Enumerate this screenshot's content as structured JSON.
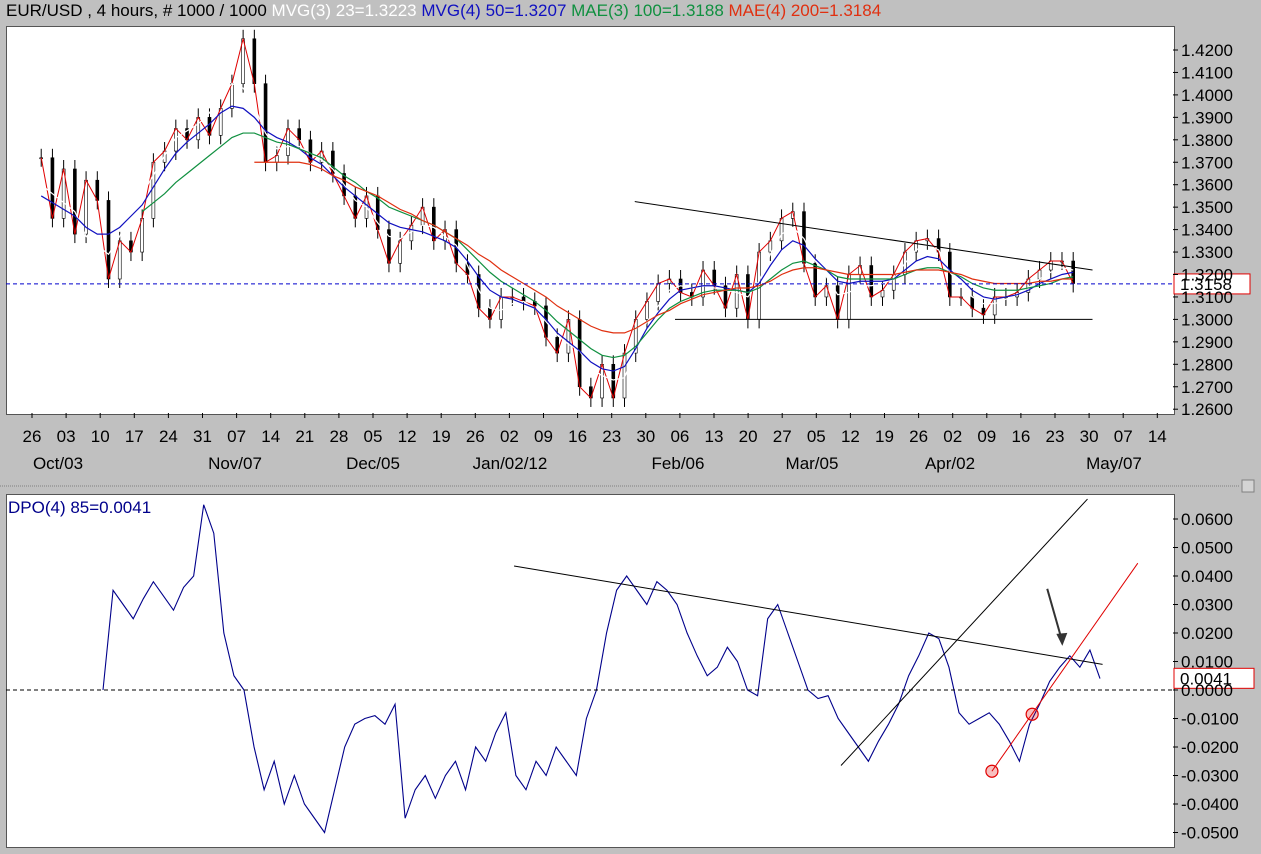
{
  "header": {
    "symbol": "EUR/USD , 4 hours, # 1000 / 1000",
    "mvg3": "MVG(3) 23=1.3223",
    "mvg4": "MVG(4) 50=1.3207",
    "mae3": "MAE(3) 100=1.3188",
    "mae4": "MAE(4) 200=1.3184"
  },
  "colors": {
    "price": "#000000",
    "mvg3": "#ffffff",
    "mvg4": "#1010c0",
    "mae3": "#109040",
    "mae4": "#e03010",
    "dpo": "#00008b",
    "marker": "#e00000"
  },
  "chart_data": [
    {
      "type": "candlestick",
      "title": "EUR/USD , 4 hours, # 1000 / 1000",
      "ylim": [
        1.255,
        1.43
      ],
      "y_ticks": [
        "1.4200",
        "1.4100",
        "1.4000",
        "1.3900",
        "1.3800",
        "1.3700",
        "1.3600",
        "1.3500",
        "1.3400",
        "1.3300",
        "1.3200",
        "1.3100",
        "1.3000",
        "1.2900",
        "1.2800",
        "1.2700",
        "1.2600"
      ],
      "x_day_labels": [
        "26",
        "03",
        "10",
        "17",
        "24",
        "31",
        "07",
        "14",
        "21",
        "28",
        "05",
        "12",
        "19",
        "26",
        "02",
        "09",
        "16",
        "23",
        "30",
        "06",
        "13",
        "20",
        "27",
        "05",
        "12",
        "19",
        "26",
        "02",
        "09",
        "16",
        "23",
        "30",
        "07",
        "14"
      ],
      "x_month_labels": [
        "Oct/03",
        "Nov/07",
        "Dec/05",
        "Jan/02/12",
        "Feb/06",
        "Mar/05",
        "Apr/02",
        "May/07"
      ],
      "last_price": "1.3158",
      "price_path": [
        1.372,
        1.345,
        1.367,
        1.338,
        1.362,
        1.353,
        1.318,
        1.335,
        1.33,
        1.345,
        1.37,
        1.375,
        1.385,
        1.38,
        1.39,
        1.382,
        1.394,
        1.405,
        1.425,
        1.405,
        1.37,
        1.373,
        1.385,
        1.38,
        1.37,
        1.375,
        1.365,
        1.355,
        1.345,
        1.355,
        1.34,
        1.325,
        1.335,
        1.342,
        1.35,
        1.335,
        1.34,
        1.325,
        1.32,
        1.305,
        1.3,
        1.31,
        1.31,
        1.308,
        1.306,
        1.292,
        1.285,
        1.3,
        1.27,
        1.265,
        1.28,
        1.265,
        1.285,
        1.3,
        1.308,
        1.316,
        1.318,
        1.312,
        1.31,
        1.322,
        1.315,
        1.305,
        1.32,
        1.3,
        1.33,
        1.335,
        1.345,
        1.348,
        1.325,
        1.31,
        1.315,
        1.3,
        1.32,
        1.324,
        1.31,
        1.313,
        1.32,
        1.33,
        1.335,
        1.336,
        1.33,
        1.31,
        1.31,
        1.305,
        1.302,
        1.31,
        1.31,
        1.312,
        1.318,
        1.322,
        1.326,
        1.326,
        1.316
      ],
      "series": [
        {
          "name": "MVG(3) 23",
          "values": [
            1.36,
            1.356,
            1.352,
            1.348,
            1.337,
            1.333,
            1.329,
            1.337,
            1.347,
            1.356,
            1.364,
            1.373,
            1.381,
            1.384,
            1.387,
            1.392,
            1.4,
            1.405,
            1.403,
            1.395,
            1.383,
            1.376,
            1.377,
            1.377,
            1.374,
            1.371,
            1.367,
            1.36,
            1.353,
            1.35,
            1.343,
            1.337,
            1.336,
            1.339,
            1.342,
            1.341,
            1.337,
            1.333,
            1.324,
            1.313,
            1.305,
            1.304,
            1.307,
            1.308,
            1.305,
            1.299,
            1.293,
            1.289,
            1.286,
            1.278,
            1.275,
            1.273,
            1.274,
            1.287,
            1.299,
            1.306,
            1.313,
            1.315,
            1.314,
            1.315,
            1.314,
            1.313,
            1.312,
            1.31,
            1.317,
            1.329,
            1.338,
            1.341,
            1.336,
            1.326,
            1.319,
            1.311,
            1.312,
            1.315,
            1.315,
            1.316,
            1.318,
            1.325,
            1.331,
            1.333,
            1.331,
            1.321,
            1.315,
            1.31,
            1.307,
            1.307,
            1.309,
            1.311,
            1.314,
            1.318,
            1.321,
            1.323,
            1.322
          ]
        },
        {
          "name": "MVG(4) 50",
          "values": [
            1.355,
            1.352,
            1.349,
            1.346,
            1.341,
            1.338,
            1.338,
            1.341,
            1.346,
            1.351,
            1.359,
            1.367,
            1.374,
            1.379,
            1.383,
            1.387,
            1.392,
            1.395,
            1.394,
            1.39,
            1.384,
            1.381,
            1.379,
            1.376,
            1.372,
            1.369,
            1.364,
            1.359,
            1.355,
            1.351,
            1.347,
            1.343,
            1.341,
            1.34,
            1.339,
            1.337,
            1.335,
            1.332,
            1.326,
            1.319,
            1.313,
            1.31,
            1.309,
            1.307,
            1.305,
            1.3,
            1.294,
            1.29,
            1.286,
            1.281,
            1.278,
            1.277,
            1.279,
            1.287,
            1.296,
            1.303,
            1.309,
            1.313,
            1.314,
            1.315,
            1.315,
            1.314,
            1.313,
            1.312,
            1.316,
            1.324,
            1.331,
            1.335,
            1.333,
            1.327,
            1.322,
            1.317,
            1.316,
            1.317,
            1.317,
            1.317,
            1.318,
            1.322,
            1.326,
            1.328,
            1.327,
            1.322,
            1.318,
            1.313,
            1.31,
            1.309,
            1.31,
            1.311,
            1.313,
            1.316,
            1.318,
            1.32,
            1.321
          ]
        },
        {
          "name": "MAE(3) 100",
          "values": [
            null,
            null,
            null,
            null,
            null,
            null,
            null,
            null,
            null,
            1.348,
            1.352,
            1.356,
            1.361,
            1.365,
            1.369,
            1.373,
            1.377,
            1.381,
            1.383,
            1.383,
            1.381,
            1.379,
            1.378,
            1.376,
            1.374,
            1.372,
            1.368,
            1.364,
            1.361,
            1.357,
            1.354,
            1.35,
            1.348,
            1.346,
            1.344,
            1.342,
            1.339,
            1.336,
            1.331,
            1.326,
            1.321,
            1.317,
            1.314,
            1.311,
            1.308,
            1.304,
            1.299,
            1.295,
            1.291,
            1.287,
            1.284,
            1.283,
            1.284,
            1.288,
            1.294,
            1.3,
            1.305,
            1.308,
            1.31,
            1.312,
            1.313,
            1.313,
            1.313,
            1.312,
            1.314,
            1.318,
            1.322,
            1.325,
            1.326,
            1.324,
            1.322,
            1.319,
            1.318,
            1.318,
            1.318,
            1.318,
            1.318,
            1.32,
            1.322,
            1.323,
            1.323,
            1.321,
            1.319,
            1.316,
            1.314,
            1.313,
            1.313,
            1.313,
            1.314,
            1.315,
            1.316,
            1.318,
            1.319
          ]
        },
        {
          "name": "MAE(4) 200",
          "values": [
            null,
            null,
            null,
            null,
            null,
            null,
            null,
            null,
            null,
            null,
            null,
            null,
            null,
            null,
            null,
            null,
            null,
            null,
            null,
            1.37,
            1.37,
            1.37,
            1.37,
            1.37,
            1.369,
            1.367,
            1.364,
            1.362,
            1.359,
            1.357,
            1.355,
            1.352,
            1.349,
            1.347,
            1.344,
            1.342,
            1.339,
            1.336,
            1.333,
            1.329,
            1.326,
            1.322,
            1.319,
            1.316,
            1.313,
            1.31,
            1.306,
            1.303,
            1.3,
            1.297,
            1.295,
            1.294,
            1.294,
            1.296,
            1.299,
            1.302,
            1.304,
            1.307,
            1.309,
            1.311,
            1.312,
            1.313,
            1.314,
            1.314,
            1.315,
            1.317,
            1.32,
            1.322,
            1.323,
            1.323,
            1.322,
            1.321,
            1.32,
            1.32,
            1.32,
            1.32,
            1.32,
            1.321,
            1.322,
            1.322,
            1.322,
            1.321,
            1.32,
            1.318,
            1.317,
            1.316,
            1.316,
            1.316,
            1.316,
            1.317,
            1.317,
            1.318,
            1.318
          ]
        }
      ],
      "annotations": [
        {
          "type": "trendline",
          "from": {
            "day": 125,
            "y": 1.3525
          },
          "to": {
            "day": 216,
            "y": 1.322
          }
        },
        {
          "type": "hline",
          "y": 1.3,
          "from_day": 133,
          "to_day": 216
        },
        {
          "type": "hline_dashed",
          "y": 1.3158
        }
      ]
    },
    {
      "type": "line",
      "title": "DPO(4) 85=0.0041",
      "ylim": [
        -0.053,
        0.068
      ],
      "y_ticks": [
        "0.0600",
        "0.0500",
        "0.0400",
        "0.0300",
        "0.0200",
        "0.0100",
        "0.0000",
        "-0.0100",
        "-0.0200",
        "-0.0300",
        "-0.0400",
        "-0.0500"
      ],
      "last_value": "0.0041",
      "series": [
        {
          "name": "DPO(4) 85",
          "values": [
            0.0,
            0.035,
            0.03,
            0.025,
            0.032,
            0.038,
            0.033,
            0.028,
            0.036,
            0.04,
            0.065,
            0.055,
            0.02,
            0.005,
            0.0,
            -0.02,
            -0.035,
            -0.025,
            -0.04,
            -0.03,
            -0.04,
            -0.045,
            -0.05,
            -0.035,
            -0.02,
            -0.012,
            -0.01,
            -0.009,
            -0.012,
            -0.005,
            -0.045,
            -0.035,
            -0.03,
            -0.038,
            -0.03,
            -0.025,
            -0.035,
            -0.02,
            -0.025,
            -0.015,
            -0.008,
            -0.03,
            -0.035,
            -0.025,
            -0.03,
            -0.02,
            -0.025,
            -0.03,
            -0.01,
            0.0,
            0.02,
            0.035,
            0.04,
            0.035,
            0.03,
            0.038,
            0.035,
            0.03,
            0.02,
            0.012,
            0.005,
            0.008,
            0.015,
            0.01,
            0.0,
            -0.002,
            0.025,
            0.03,
            0.02,
            0.01,
            0.0,
            -0.003,
            -0.002,
            -0.01,
            -0.015,
            -0.02,
            -0.025,
            -0.018,
            -0.012,
            -0.005,
            0.005,
            0.012,
            0.02,
            0.018,
            0.008,
            -0.008,
            -0.012,
            -0.01,
            -0.008,
            -0.012,
            -0.018,
            -0.025,
            -0.012,
            -0.005,
            0.003,
            0.008,
            0.012,
            0.008,
            0.014,
            0.004
          ]
        }
      ],
      "annotations": [
        {
          "type": "hline_dashed",
          "y": 0.0
        },
        {
          "type": "trendline",
          "from": {
            "day": 101,
            "y": 0.0435
          },
          "to": {
            "day": 218,
            "y": 0.009
          }
        },
        {
          "type": "trendline",
          "from": {
            "day": 166,
            "y": -0.0265
          },
          "to": {
            "day": 215,
            "y": 0.067
          }
        },
        {
          "type": "trendline_red",
          "from": {
            "day": 196,
            "y": -0.0285
          },
          "to": {
            "day": 225,
            "y": 0.0445
          }
        },
        {
          "type": "circle",
          "day": 196,
          "y": -0.0285
        },
        {
          "type": "circle",
          "day": 204,
          "y": -0.0085
        },
        {
          "type": "arrow",
          "from": {
            "day": 207,
            "y": 0.0355
          },
          "to": {
            "day": 210,
            "y": 0.0155
          }
        }
      ]
    }
  ]
}
